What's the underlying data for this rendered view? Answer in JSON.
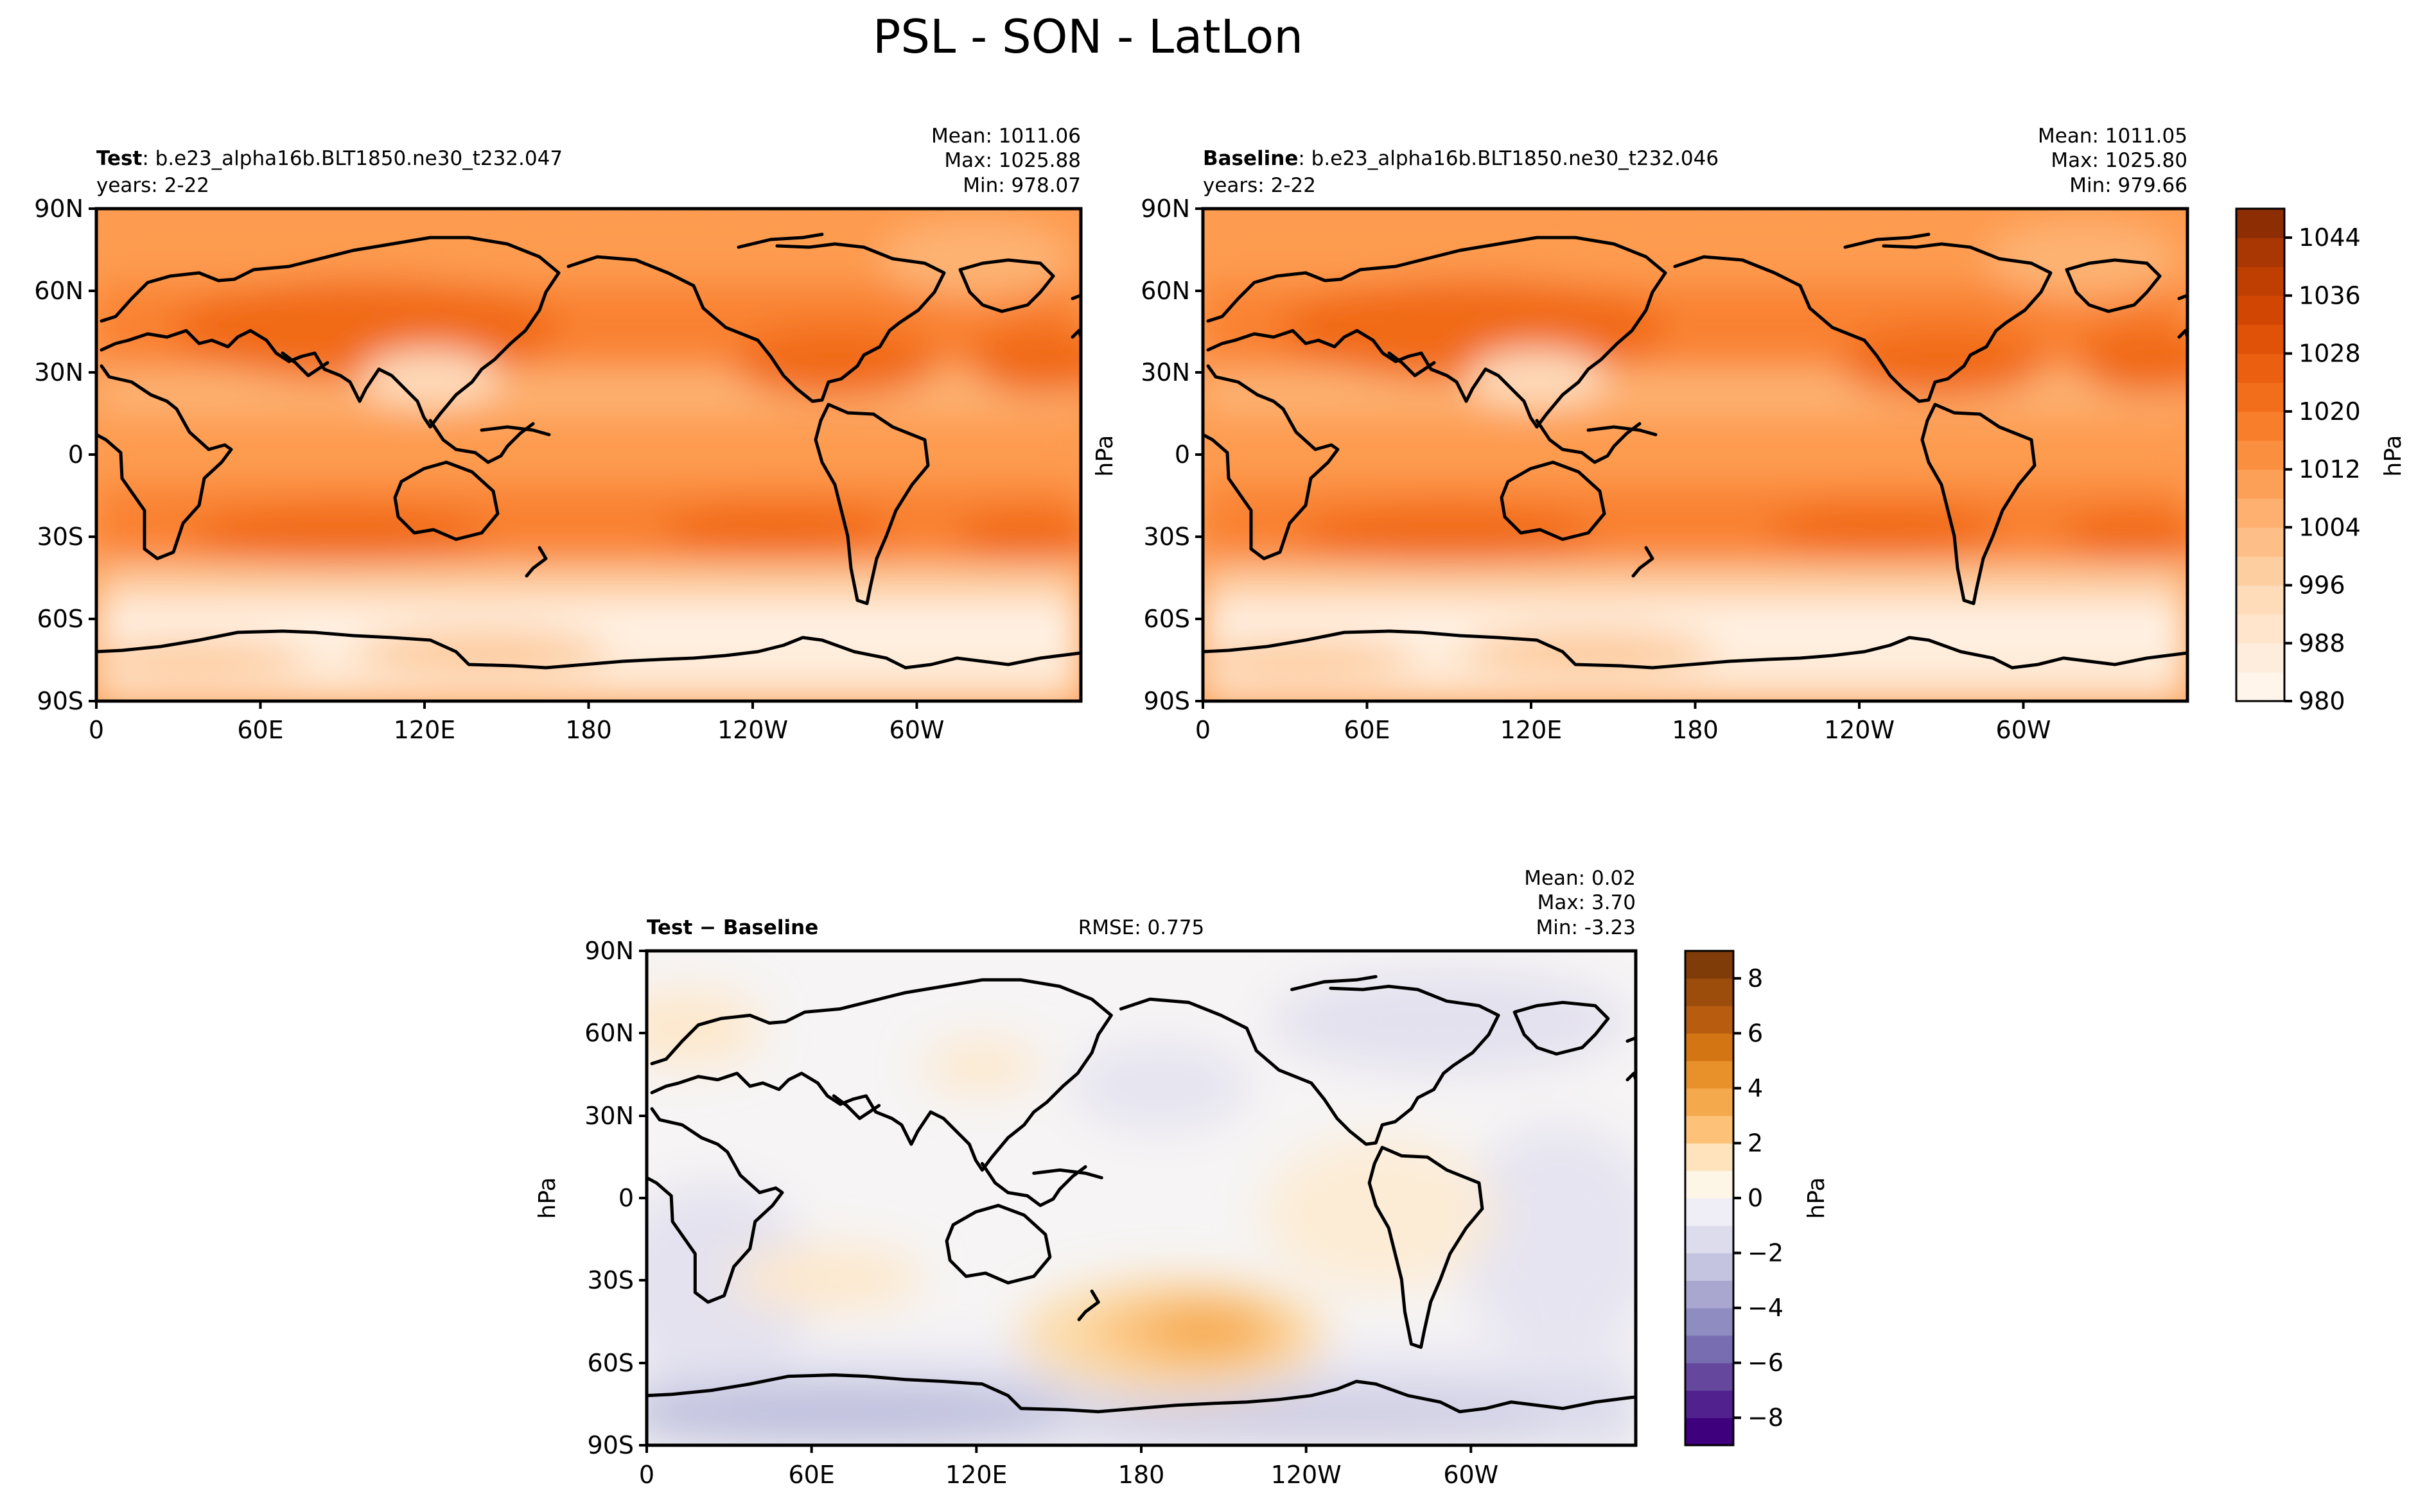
{
  "figure": {
    "title": "PSL - SON - LatLon",
    "unit_label": "hPa"
  },
  "panels": {
    "test": {
      "label_bold": "Test",
      "label_rest": ": b.e23_alpha16b.BLT1850.ne30_t232.047",
      "years": "years: 2-22",
      "mean": "Mean: 1011.06",
      "max": "Max: 1025.88",
      "min": "Min: 978.07"
    },
    "baseline": {
      "label_bold": "Baseline",
      "label_rest": ": b.e23_alpha16b.BLT1850.ne30_t232.046",
      "years": "years: 2-22",
      "mean": "Mean: 1011.05",
      "max": "Max: 1025.80",
      "min": "Min: 979.66"
    },
    "diff": {
      "label": "Test − Baseline",
      "rmse": "RMSE: 0.775",
      "mean": "Mean:  0.02",
      "max": "Max:  3.70",
      "min": "Min: -3.23"
    }
  },
  "axes": {
    "lon_ticks": [
      "0",
      "60E",
      "120E",
      "180",
      "120W",
      "60W"
    ],
    "lat_ticks": [
      "90N",
      "60N",
      "30N",
      "0",
      "30S",
      "60S",
      "90S"
    ]
  },
  "colors": {
    "psl_cmap": [
      "#fff5eb",
      "#feead6",
      "#fedcbb",
      "#fdc997",
      "#fdb373",
      "#fd9b50",
      "#f98230",
      "#f16b17",
      "#e4560a",
      "#d14502",
      "#b43b02",
      "#8c2d04"
    ],
    "diff_cmap_neg": [
      "#3f007d",
      "#54278f",
      "#6a51a3",
      "#807dba",
      "#9e9ac8",
      "#bcbddc",
      "#dadaeb",
      "#efedf5"
    ],
    "diff_cmap_pos": [
      "#fdf5e6",
      "#fee0b6",
      "#fdb863",
      "#f0a040",
      "#e08214",
      "#c06010",
      "#a04f0c",
      "#7f3b08"
    ]
  },
  "chart_data": [
    {
      "type": "heatmap",
      "title": "Test : b.e23_alpha16b.BLT1850.ne30_t232.047",
      "variable": "PSL",
      "season": "SON",
      "units": "hPa",
      "stats": {
        "mean": 1011.06,
        "max": 1025.88,
        "min": 978.07
      },
      "colorbar": {
        "ticks": [
          980,
          988,
          996,
          1004,
          1012,
          1020,
          1028,
          1036,
          1044
        ],
        "range": [
          980,
          1048
        ],
        "step": 4
      }
    },
    {
      "type": "heatmap",
      "title": "Baseline : b.e23_alpha16b.BLT1850.ne30_t232.046",
      "variable": "PSL",
      "season": "SON",
      "units": "hPa",
      "stats": {
        "mean": 1011.05,
        "max": 1025.8,
        "min": 979.66
      },
      "colorbar": {
        "ticks": [
          980,
          988,
          996,
          1004,
          1012,
          1020,
          1028,
          1036,
          1044
        ],
        "range": [
          980,
          1048
        ],
        "step": 4
      }
    },
    {
      "type": "heatmap",
      "title": "Test − Baseline",
      "units": "hPa",
      "stats": {
        "mean": 0.02,
        "max": 3.7,
        "min": -3.23,
        "rmse": 0.775
      },
      "colorbar": {
        "ticks": [
          -8,
          -6,
          -4,
          -2,
          0,
          2,
          4,
          6,
          8
        ],
        "range": [
          -9,
          9
        ],
        "step": 1
      }
    }
  ]
}
